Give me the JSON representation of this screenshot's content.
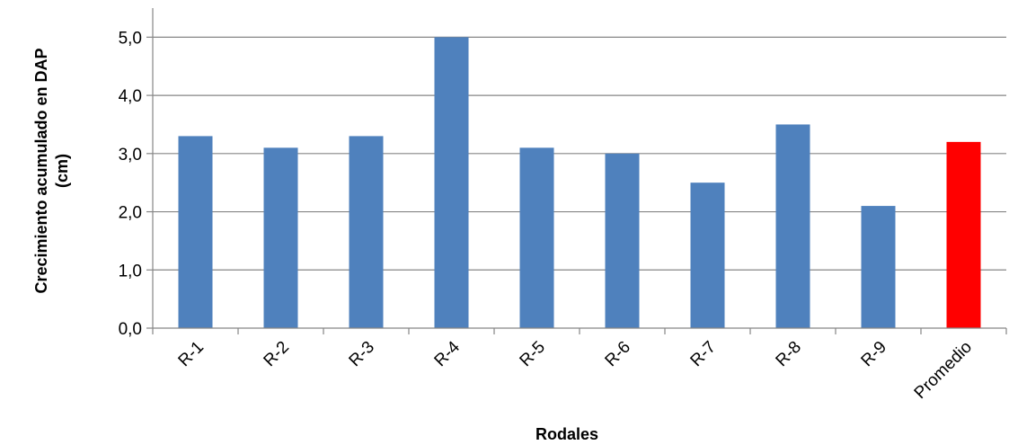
{
  "chart_data": {
    "type": "bar",
    "categories": [
      "R-1",
      "R-2",
      "R-3",
      "R-4",
      "R-5",
      "R-6",
      "R-7",
      "R-8",
      "R-9",
      "Promedio"
    ],
    "values": [
      3.3,
      3.1,
      3.3,
      5.0,
      3.1,
      3.0,
      2.5,
      3.5,
      2.1,
      3.2
    ],
    "colors": [
      "#4F81BD",
      "#4F81BD",
      "#4F81BD",
      "#4F81BD",
      "#4F81BD",
      "#4F81BD",
      "#4F81BD",
      "#4F81BD",
      "#4F81BD",
      "#FF0000"
    ],
    "title": "",
    "xlabel": "Rodales",
    "ylabel_line1": "Crecimiento acumulado en DAP",
    "ylabel_line2": "(cm)",
    "ylim": [
      0,
      5.5
    ],
    "yticks": [
      "0,0",
      "1,0",
      "2,0",
      "3,0",
      "4,0",
      "5,0"
    ],
    "ytick_values": [
      0,
      1,
      2,
      3,
      4,
      5
    ],
    "grid": true,
    "gridline_color": "#868686",
    "axis_color": "#868686"
  }
}
